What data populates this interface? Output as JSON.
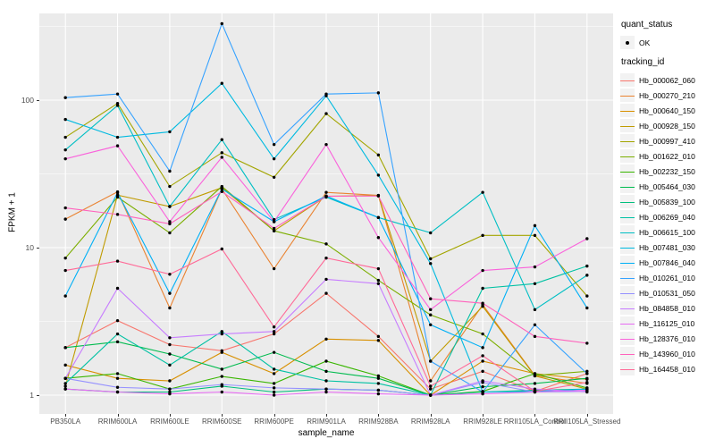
{
  "y_axis": {
    "title": "FPKM + 1",
    "tick_labels": [
      "100",
      "10",
      "1"
    ],
    "tick_values": [
      100,
      10,
      1
    ]
  },
  "x_axis": {
    "title": "sample_name"
  },
  "legend": {
    "quant_title": "quant_status",
    "quant_ok_label": "OK",
    "tracking_title": "tracking_id"
  },
  "colors": {
    "panel_bg": "#EBEBEB",
    "grid": "#FFFFFF",
    "tick": "#333333",
    "axis_text": "#4D4D4D",
    "point": "#000000",
    "legend_key_bg": "#F2F2F2"
  },
  "chart_data": {
    "type": "line",
    "title": "",
    "xlabel": "sample_name",
    "ylabel": "FPKM + 1",
    "yscale": "log10",
    "ylim": [
      0.76,
      392
    ],
    "yticks": [
      1,
      10,
      100
    ],
    "grid": true,
    "legend_position": "right",
    "quant_status": "OK",
    "x_categories": [
      "PB350LA",
      "RRIM600LA",
      "RRIM600LE",
      "RRIM600SE",
      "RRIM600PE",
      "RRIM901LA",
      "RRIM928BA",
      "RRIM928LA",
      "RRIM928LE",
      "RRII105LA_Control",
      "RRII105LA_Stressed"
    ],
    "series": [
      {
        "name": "Hb_000062_060",
        "color": "#F8766D",
        "values": [
          2.1,
          3.2,
          2.2,
          2.0,
          2.6,
          4.9,
          2.5,
          1.1,
          1.45,
          1.06,
          1.4
        ]
      },
      {
        "name": "Hb_000270_210",
        "color": "#EA8331",
        "values": [
          15.6,
          23.9,
          3.9,
          25,
          7.2,
          23.7,
          22.6,
          1.25,
          4.1,
          1.36,
          1.2
        ]
      },
      {
        "name": "Hb_000640_150",
        "color": "#D89000",
        "values": [
          1.6,
          1.3,
          1.25,
          1.95,
          1.4,
          2.4,
          2.35,
          1.0,
          1.7,
          1.4,
          1.28
        ]
      },
      {
        "name": "Hb_000928_150",
        "color": "#C09B00",
        "values": [
          1.15,
          22.7,
          19,
          25.5,
          13,
          22.3,
          22.6,
          1.7,
          4.0,
          1.35,
          1.1
        ]
      },
      {
        "name": "Hb_000997_410",
        "color": "#A3A500",
        "values": [
          56,
          95,
          26,
          44,
          30,
          81,
          42.5,
          8.4,
          12.1,
          12.1,
          4.7
        ]
      },
      {
        "name": "Hb_001622_010",
        "color": "#7CAE00",
        "values": [
          8.5,
          22,
          12.6,
          26,
          13,
          10.6,
          6.0,
          3.5,
          2.6,
          1.36,
          1.45
        ]
      },
      {
        "name": "Hb_002232_150",
        "color": "#39B600",
        "values": [
          1.3,
          1.4,
          1.1,
          1.34,
          1.2,
          1.7,
          1.35,
          1.0,
          1.06,
          1.4,
          1.12
        ]
      },
      {
        "name": "Hb_005464_030",
        "color": "#00BB4E",
        "values": [
          2.1,
          2.3,
          1.9,
          1.5,
          1.95,
          1.45,
          1.3,
          1.0,
          1.14,
          1.2,
          1.3
        ]
      },
      {
        "name": "Hb_005839_100",
        "color": "#00BF7D",
        "values": [
          1.1,
          1.05,
          1.05,
          1.15,
          1.05,
          1.1,
          1.08,
          1.0,
          1.05,
          1.08,
          1.1
        ]
      },
      {
        "name": "Hb_006269_040",
        "color": "#00C1A3",
        "values": [
          1.2,
          2.6,
          1.6,
          2.7,
          1.5,
          1.25,
          1.2,
          1.0,
          5.3,
          5.7,
          7.5
        ]
      },
      {
        "name": "Hb_006615_100",
        "color": "#00BFC4",
        "values": [
          46,
          92,
          19,
          54,
          15.5,
          22,
          16,
          12.6,
          23.7,
          3.8,
          6.5
        ]
      },
      {
        "name": "Hb_007481_030",
        "color": "#00BAE0",
        "values": [
          74,
          56,
          61,
          130,
          40,
          107,
          31,
          7.8,
          1.05,
          1.06,
          1.1
        ]
      },
      {
        "name": "Hb_007846_040",
        "color": "#00B0F6",
        "values": [
          4.7,
          23.6,
          4.9,
          25,
          15,
          22.4,
          16,
          3.0,
          2.1,
          14.1,
          3.9
        ]
      },
      {
        "name": "Hb_010261_010",
        "color": "#35A2FF",
        "values": [
          104,
          110,
          33,
          330,
          50,
          110,
          112,
          1.7,
          1.05,
          3.0,
          1.4
        ]
      },
      {
        "name": "Hb_010531_050",
        "color": "#9590FF",
        "values": [
          1.3,
          1.13,
          1.1,
          1.18,
          1.12,
          1.1,
          1.08,
          1.0,
          1.22,
          1.05,
          1.06
        ]
      },
      {
        "name": "Hb_084858_010",
        "color": "#C77CFF",
        "values": [
          1.3,
          5.3,
          2.45,
          2.6,
          2.7,
          6.1,
          5.7,
          1.0,
          1.25,
          1.1,
          1.05
        ]
      },
      {
        "name": "Hb_116125_010",
        "color": "#E76BF3",
        "values": [
          1.1,
          1.05,
          1.02,
          1.05,
          1.0,
          1.05,
          1.02,
          1.0,
          1.02,
          1.05,
          1.08
        ]
      },
      {
        "name": "Hb_128376_010",
        "color": "#FA62DB",
        "values": [
          40,
          49,
          15,
          41,
          15,
          50,
          11.7,
          3.8,
          7.0,
          7.4,
          11.5
        ]
      },
      {
        "name": "Hb_143960_010",
        "color": "#FF62BC",
        "values": [
          18.6,
          16.8,
          14.5,
          24,
          13.5,
          22.3,
          22.4,
          4.5,
          4.2,
          2.5,
          2.25
        ]
      },
      {
        "name": "Hb_164458_010",
        "color": "#FF6A98",
        "values": [
          7.0,
          8.1,
          6.6,
          9.8,
          2.9,
          8.5,
          7.2,
          1.15,
          1.85,
          1.06,
          1.22
        ]
      }
    ]
  }
}
